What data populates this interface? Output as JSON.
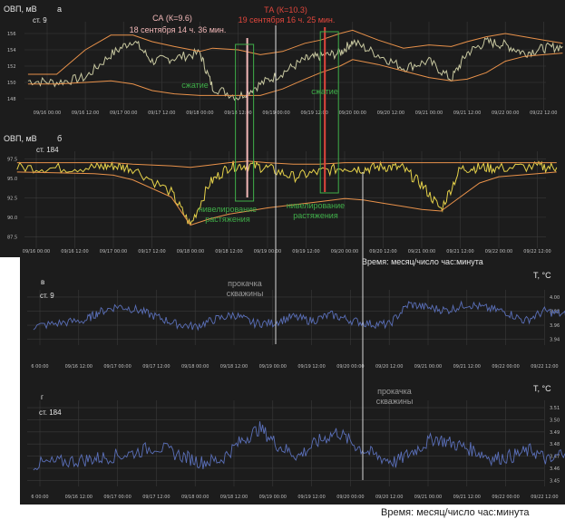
{
  "chart_data": [
    {
      "panel": "а",
      "type": "line",
      "ylabel": "ОВП, мВ",
      "station": "ст. 9",
      "yticks": [
        "156",
        "154",
        "152",
        "150",
        "148"
      ],
      "xticks": [
        "09/16 00:00",
        "09/16 12:00",
        "09/17 00:00",
        "09/17 12:00",
        "09/18 00:00",
        "09/18 12:00",
        "09/19 00:00",
        "09/19 12:00",
        "09/20 00:00",
        "09/20 12:00",
        "09/21 00:00",
        "09/21 12:00",
        "09/22 00:00",
        "09/22 12:00"
      ],
      "x": [
        "09/15 18:00",
        "09/16 03:00",
        "09/16 12:00",
        "09/16 20:00",
        "09/17 03:00",
        "09/17 09:00",
        "09/17 16:00",
        "09/18 00:00",
        "09/18 04:00",
        "09/18 12:00",
        "09/18 19:00",
        "09/19 02:00",
        "09/19 09:00",
        "09/19 14:00",
        "09/19 20:00",
        "09/20 00:00",
        "09/20 08:00",
        "09/20 16:00",
        "09/21 00:00",
        "09/21 07:00",
        "09/21 12:00",
        "09/21 18:00",
        "09/22 00:00",
        "09/22 06:00",
        "09/22 12:00",
        "09/22 18:00"
      ],
      "series": [
        {
          "values": [
            150.2,
            150.0,
            150.6,
            153.4,
            155.2,
            152.6,
            153.0,
            153.6,
            149.4,
            148.2,
            149.8,
            151.2,
            152.8,
            153.2,
            153.6,
            155.0,
            153.4,
            151.8,
            152.6,
            150.4,
            153.6,
            155.0,
            154.6,
            153.6,
            154.2,
            154.4
          ],
          "color": "#c8c8a0"
        },
        {
          "values": [
            151.0,
            151.0,
            154.0,
            155.8,
            155.8,
            155.0,
            154.4,
            153.8,
            154.2,
            154.0,
            153.4,
            153.8,
            154.8,
            155.2,
            156.0,
            156.4,
            155.2,
            154.2,
            154.6,
            154.4,
            155.0,
            155.6,
            156.0,
            155.6,
            155.2,
            154.8
          ],
          "color": "#e8914a"
        },
        {
          "values": [
            149.8,
            149.8,
            150.0,
            150.2,
            149.8,
            149.0,
            148.6,
            148.4,
            148.4,
            148.4,
            148.4,
            149.2,
            150.4,
            151.2,
            152.0,
            152.8,
            152.2,
            151.4,
            150.6,
            150.2,
            150.4,
            151.2,
            152.6,
            153.2,
            153.4,
            153.6
          ],
          "color": "#e8914a"
        }
      ],
      "annotations": [
        {
          "text": "СА (К=9.6)",
          "sub": "18 сентября 14 ч. 36 мин.",
          "color": "#f2b8b8",
          "x": "09/18 14:36"
        },
        {
          "text": "ТА (К=10.3)",
          "sub": "19 сентября 16 ч. 25 мин.",
          "color": "#e0463c",
          "x": "09/19 16:25"
        },
        {
          "text": "сжатие",
          "color": "#3fae49",
          "x": "09/17 20:00"
        },
        {
          "text": "сжатие",
          "color": "#3fae49",
          "x": "09/20 00:00"
        }
      ]
    },
    {
      "panel": "б",
      "type": "line",
      "ylabel": "ОВП, мВ",
      "station": "ст. 184",
      "yticks": [
        "97.5",
        "95.0",
        "92.5",
        "90.0",
        "87.5"
      ],
      "xticks": [
        "09/16 00:00",
        "09/16 12:00",
        "09/17 00:00",
        "09/17 12:00",
        "09/18 00:00",
        "09/18 12:00",
        "09/19 00:00",
        "09/19 12:00",
        "09/20 00:00",
        "09/20 12:00",
        "09/21 00:00",
        "09/21 12:00",
        "09/22 00:00",
        "09/22 12:00"
      ],
      "x": [
        "09/15 18:00",
        "09/16 06:00",
        "09/16 18:00",
        "09/17 00:00",
        "09/17 06:00",
        "09/17 18:00",
        "09/18 00:00",
        "09/18 06:00",
        "09/18 12:00",
        "09/18 18:00",
        "09/19 00:00",
        "09/19 08:00",
        "09/19 16:00",
        "09/20 00:00",
        "09/20 06:00",
        "09/20 12:00",
        "09/20 18:00",
        "09/21 00:00",
        "09/21 06:00",
        "09/21 12:00",
        "09/21 18:00",
        "09/22 00:00",
        "09/22 12:00",
        "09/22 18:00"
      ],
      "series": [
        {
          "values": [
            96.4,
            96.3,
            96.4,
            96.6,
            96.3,
            93.2,
            89.0,
            94.4,
            96.5,
            96.7,
            96.3,
            95.2,
            95.8,
            96.4,
            96.2,
            96.5,
            96.3,
            94.2,
            91.0,
            96.2,
            96.4,
            96.3,
            96.5,
            96.4
          ],
          "color": "#e6d24a"
        },
        {
          "values": [
            97.0,
            97.0,
            97.0,
            97.0,
            96.8,
            96.6,
            96.4,
            96.7,
            97.0,
            97.2,
            97.0,
            96.8,
            96.8,
            97.0,
            97.0,
            97.0,
            97.0,
            97.0,
            97.0,
            97.0,
            97.0,
            97.0,
            97.0,
            97.0
          ],
          "color": "#e8914a"
        },
        {
          "values": [
            95.8,
            95.7,
            95.6,
            95.4,
            94.8,
            92.6,
            89.0,
            89.8,
            90.4,
            90.8,
            91.2,
            91.6,
            92.0,
            92.4,
            92.2,
            91.8,
            91.4,
            91.0,
            90.8,
            92.6,
            94.4,
            95.2,
            95.6,
            95.8
          ],
          "color": "#e8914a"
        }
      ],
      "annotations": [
        {
          "text": "нивелирование",
          "sub": "растяжения",
          "color": "#3fae49",
          "x": "09/18 12:00"
        },
        {
          "text": "нивелирование",
          "sub": "растяжения",
          "color": "#3fae49",
          "x": "09/19 16:00"
        }
      ],
      "xlabel": "Время: месяц/число час:минута"
    },
    {
      "panel": "в",
      "type": "line",
      "ylabel": "Т, °С",
      "station": "ст. 9",
      "yticks": [
        "4.00",
        "3.98",
        "3.96",
        "3.94"
      ],
      "xticks": [
        "6 00:00",
        "09/16 12:00",
        "09/17 00:00",
        "09/17 12:00",
        "09/18 00:00",
        "09/18 12:00",
        "09/19 00:00",
        "09/19 12:00",
        "09/20 00:00",
        "09/20 12:00",
        "09/21 00:00",
        "09/21 12:00",
        "09/22 00:00",
        "09/22 12:00"
      ],
      "x": [
        "09/15 22:00",
        "09/16 06:00",
        "09/16 14:00",
        "09/16 18:00",
        "09/17 00:00",
        "09/17 06:00",
        "09/17 12:00",
        "09/17 18:00",
        "09/18 00:00",
        "09/18 06:00",
        "09/18 12:00",
        "09/18 18:00",
        "09/19 00:00",
        "09/19 06:00",
        "09/19 12:00",
        "09/19 18:00",
        "09/20 00:00",
        "09/20 06:00",
        "09/20 12:00",
        "09/20 18:00",
        "09/21 00:00",
        "09/21 06:00",
        "09/21 12:00",
        "09/21 18:00",
        "09/22 00:00",
        "09/22 06:00",
        "09/22 12:00",
        "09/22 18:00",
        "09/22 22:00"
      ],
      "series": [
        {
          "values": [
            3.958,
            3.963,
            3.967,
            3.978,
            3.987,
            3.982,
            3.972,
            3.962,
            3.958,
            3.968,
            3.975,
            3.963,
            3.963,
            3.972,
            3.966,
            3.975,
            3.967,
            3.962,
            3.961,
            3.99,
            3.985,
            3.981,
            3.99,
            3.984,
            3.979,
            3.966,
            3.98,
            3.975,
            3.971
          ],
          "color": "#5a6fb8"
        }
      ],
      "annotations": [
        {
          "text": "прокачка",
          "sub": "скважины",
          "color": "#9a9a9a",
          "x": "09/19 00:00"
        }
      ]
    },
    {
      "panel": "г",
      "type": "line",
      "ylabel": "Т, °С",
      "station": "ст. 184",
      "yticks": [
        "3.51",
        "3.50",
        "3.49",
        "3.48",
        "3.47",
        "3.46",
        "3.45"
      ],
      "xticks": [
        "6 00:00",
        "09/16 12:00",
        "09/17 00:00",
        "09/17 12:00",
        "09/18 00:00",
        "09/18 12:00",
        "09/19 00:00",
        "09/19 12:00",
        "09/20 00:00",
        "09/20 12:00",
        "09/21 00:00",
        "09/21 12:00",
        "09/22 00:00",
        "09/22 12:00"
      ],
      "x": [
        "09/15 22:00",
        "09/16 06:00",
        "09/16 14:00",
        "09/16 20:00",
        "09/17 04:00",
        "09/17 12:00",
        "09/17 20:00",
        "09/18 02:00",
        "09/18 08:00",
        "09/18 14:00",
        "09/18 20:00",
        "09/19 02:00",
        "09/19 08:00",
        "09/19 14:00",
        "09/19 20:00",
        "09/20 02:00",
        "09/20 08:00",
        "09/20 14:00",
        "09/20 20:00",
        "09/21 02:00",
        "09/21 08:00",
        "09/21 14:00",
        "09/21 20:00",
        "09/22 02:00",
        "09/22 08:00",
        "09/22 14:00",
        "09/22 20:00"
      ],
      "series": [
        {
          "values": [
            3.463,
            3.465,
            3.467,
            3.469,
            3.472,
            3.478,
            3.47,
            3.465,
            3.467,
            3.482,
            3.493,
            3.478,
            3.47,
            3.482,
            3.49,
            3.478,
            3.47,
            3.465,
            3.475,
            3.485,
            3.48,
            3.475,
            3.468,
            3.47,
            3.475,
            3.465,
            3.48
          ],
          "color": "#5a6fb8"
        }
      ],
      "annotations": [
        {
          "text": "прокачка",
          "sub": "скважины",
          "color": "#9a9a9a",
          "x": "09/20 18:00"
        }
      ],
      "xlabel": "Время: месяц/число час:минута"
    }
  ]
}
